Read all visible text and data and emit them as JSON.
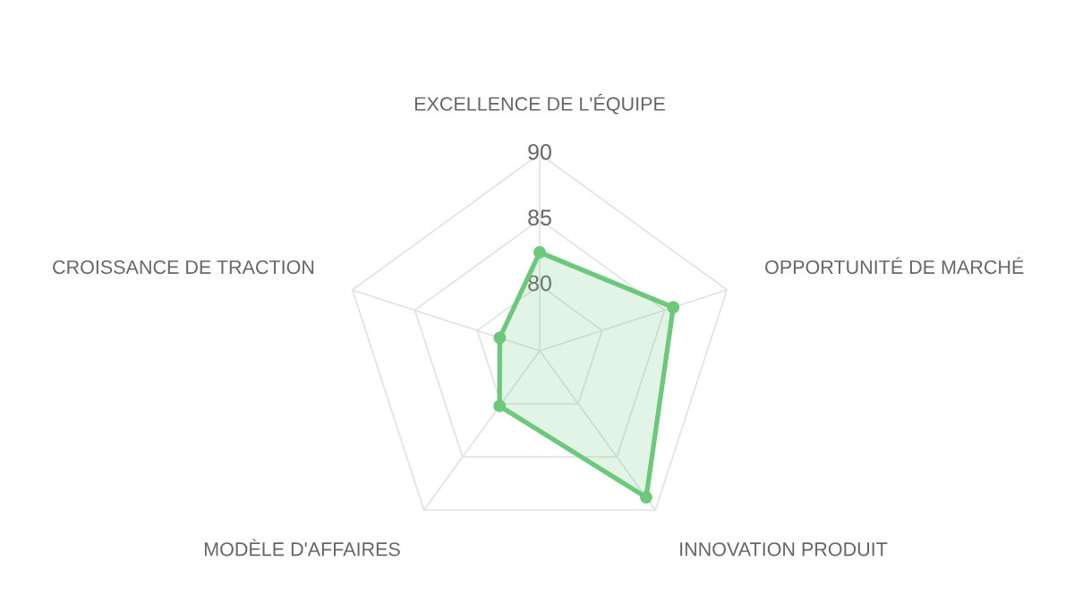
{
  "chart_data": {
    "type": "radar",
    "categories": [
      "EXCELLENCE DE L'ÉQUIPE",
      "OPPORTUNITÉ DE MARCHÉ",
      "INNOVATION PRODUIT",
      "MODÈLE D'AFFAIRES",
      "CROISSANCE DE TRACTION"
    ],
    "series": [
      {
        "color": "#6cc97c",
        "values": [
          82.5,
          85.7,
          88.8,
          80.2,
          78.2
        ]
      }
    ],
    "ylim": [
      75,
      90
    ],
    "yticks": [
      80,
      85,
      90
    ],
    "grid": true,
    "marker": "circle",
    "line_style": "solid"
  }
}
